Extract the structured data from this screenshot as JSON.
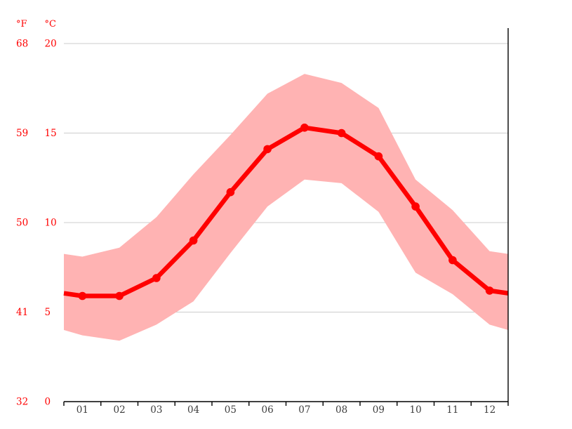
{
  "chart_data": {
    "type": "line",
    "title": "",
    "description": "Monthly temperature climate graph: red mean-temperature line with point markers and pink band spanning average minimum to average maximum temperature",
    "categories": [
      "01",
      "02",
      "03",
      "04",
      "05",
      "06",
      "07",
      "08",
      "09",
      "10",
      "11",
      "12"
    ],
    "series": [
      {
        "name": "mean_temperature_c",
        "values": [
          5.9,
          5.9,
          6.9,
          9.0,
          11.7,
          14.1,
          15.3,
          15.0,
          13.7,
          10.9,
          7.9,
          6.2
        ]
      },
      {
        "name": "band_max_temperature_c",
        "values": [
          8.1,
          8.6,
          10.3,
          12.7,
          14.9,
          17.2,
          18.3,
          17.8,
          16.4,
          12.4,
          10.7,
          8.4
        ]
      },
      {
        "name": "band_min_temperature_c",
        "values": [
          3.7,
          3.4,
          4.3,
          5.6,
          8.3,
          10.9,
          12.4,
          12.2,
          10.6,
          7.2,
          6.0,
          4.3
        ]
      }
    ],
    "y_axis": {
      "fahrenheit_unit": "°F",
      "celsius_unit": "°C",
      "fahrenheit_ticks": [
        "68",
        "59",
        "50",
        "41",
        "32"
      ],
      "celsius_ticks": [
        "20",
        "15",
        "10",
        "5",
        "0"
      ],
      "celsius_tick_values": [
        20,
        15,
        10,
        5,
        0
      ]
    },
    "x_axis": {
      "tick_labels": [
        "01",
        "02",
        "03",
        "04",
        "05",
        "06",
        "07",
        "08",
        "09",
        "10",
        "11",
        "12"
      ]
    },
    "ylim_c": [
      0,
      20.9
    ],
    "grid": "horizontal",
    "legend": "none",
    "colors": {
      "line": "#ff0000",
      "band": "#ffb3b3",
      "y_label": "#ff0000",
      "month_label": "#3d3d3d",
      "gridline": "#cccccc",
      "axis": "#000000"
    }
  }
}
